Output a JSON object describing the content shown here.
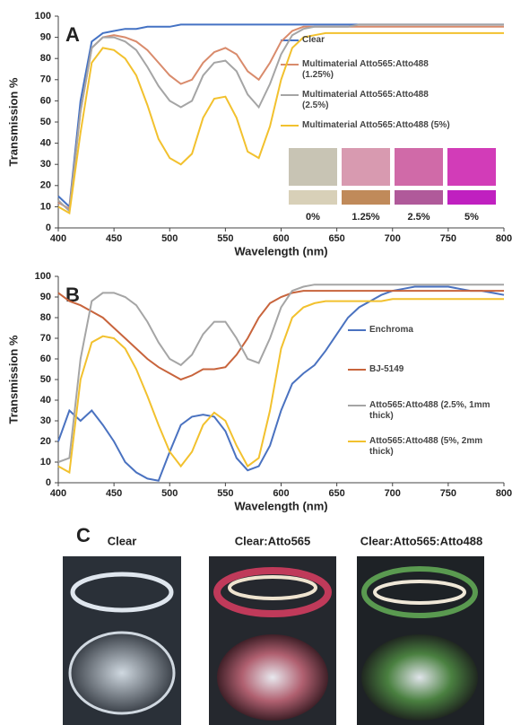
{
  "chart_data": [
    {
      "type": "line",
      "panel_label": "A",
      "x_label": "Wavelength (nm)",
      "y_label": "Transmission %",
      "xlim": [
        400,
        800
      ],
      "xticks": [
        400,
        450,
        500,
        550,
        600,
        650,
        700,
        750,
        800
      ],
      "ylim": [
        0,
        100
      ],
      "yticks": [
        0,
        10,
        20,
        30,
        40,
        50,
        60,
        70,
        80,
        90,
        100
      ],
      "x": [
        400,
        410,
        420,
        430,
        440,
        450,
        460,
        470,
        480,
        490,
        500,
        510,
        520,
        530,
        540,
        550,
        560,
        570,
        580,
        590,
        600,
        610,
        620,
        630,
        640,
        650,
        660,
        670,
        680,
        690,
        700,
        710,
        720,
        730,
        740,
        750,
        760,
        770,
        780,
        790,
        800
      ],
      "series": [
        {
          "name": "Clear",
          "color": "#4472c4",
          "values": [
            15,
            10,
            60,
            88,
            92,
            93,
            94,
            94,
            95,
            95,
            95,
            96,
            96,
            96,
            96,
            96,
            96,
            96,
            96,
            96,
            96,
            96,
            96,
            96,
            96,
            96,
            96,
            96,
            96,
            96,
            96,
            96,
            96,
            96,
            96,
            96,
            96,
            96,
            96,
            96,
            96
          ]
        },
        {
          "name": "Multimaterial Atto565:Atto488 (1.25%)",
          "color": "#d98b6c",
          "values": [
            12,
            9,
            55,
            85,
            90,
            91,
            90,
            88,
            84,
            78,
            72,
            68,
            70,
            78,
            83,
            85,
            82,
            74,
            70,
            78,
            88,
            93,
            95,
            95,
            95,
            95,
            95,
            95,
            95,
            95,
            95,
            95,
            95,
            95,
            95,
            95,
            95,
            95,
            95,
            95,
            95
          ]
        },
        {
          "name": "Multimaterial Atto565:Atto488 (2.5%)",
          "color": "#a5a5a5",
          "values": [
            13,
            8,
            55,
            85,
            90,
            90,
            88,
            84,
            76,
            67,
            60,
            57,
            60,
            72,
            78,
            79,
            74,
            63,
            57,
            68,
            82,
            91,
            94,
            95,
            95,
            95,
            95,
            96,
            96,
            96,
            96,
            96,
            96,
            96,
            96,
            96,
            96,
            96,
            96,
            96,
            96
          ]
        },
        {
          "name": "Multimaterial Atto565:Atto488 (5%)",
          "color": "#f2c12e",
          "values": [
            10,
            7,
            45,
            78,
            85,
            84,
            80,
            72,
            58,
            42,
            33,
            30,
            35,
            52,
            61,
            62,
            52,
            36,
            33,
            48,
            70,
            85,
            90,
            91,
            92,
            92,
            92,
            92,
            92,
            92,
            92,
            92,
            92,
            92,
            92,
            92,
            92,
            92,
            92,
            92,
            92
          ]
        }
      ],
      "inset_labels": [
        "0%",
        "1.25%",
        "2.5%",
        "5%"
      ]
    },
    {
      "type": "line",
      "panel_label": "B",
      "x_label": "Wavelength (nm)",
      "y_label": "Transmission %",
      "xlim": [
        400,
        800
      ],
      "xticks": [
        400,
        450,
        500,
        550,
        600,
        650,
        700,
        750,
        800
      ],
      "ylim": [
        0,
        100
      ],
      "yticks": [
        0,
        10,
        20,
        30,
        40,
        50,
        60,
        70,
        80,
        90,
        100
      ],
      "x": [
        400,
        410,
        420,
        430,
        440,
        450,
        460,
        470,
        480,
        490,
        500,
        510,
        520,
        530,
        540,
        550,
        560,
        570,
        580,
        590,
        600,
        610,
        620,
        630,
        640,
        650,
        660,
        670,
        680,
        690,
        700,
        710,
        720,
        730,
        740,
        750,
        760,
        770,
        780,
        790,
        800
      ],
      "series": [
        {
          "name": "Enchroma",
          "color": "#4a72c0",
          "values": [
            20,
            35,
            30,
            35,
            28,
            20,
            10,
            5,
            2,
            1,
            15,
            28,
            32,
            33,
            32,
            25,
            12,
            6,
            8,
            18,
            35,
            48,
            53,
            57,
            64,
            72,
            80,
            85,
            88,
            91,
            93,
            94,
            95,
            95,
            95,
            95,
            94,
            93,
            93,
            92,
            91
          ]
        },
        {
          "name": "BJ-5149",
          "color": "#c8643c",
          "values": [
            92,
            88,
            86,
            83,
            80,
            75,
            70,
            65,
            60,
            56,
            53,
            50,
            52,
            55,
            55,
            56,
            62,
            70,
            80,
            87,
            90,
            92,
            93,
            93,
            93,
            93,
            93,
            93,
            93,
            93,
            93,
            93,
            93,
            93,
            93,
            93,
            93,
            93,
            93,
            93,
            93
          ]
        },
        {
          "name": "Atto565:Atto488 (2.5%, 1mm thick)",
          "color": "#a5a5a5",
          "values": [
            10,
            12,
            60,
            88,
            92,
            92,
            90,
            86,
            78,
            68,
            60,
            57,
            62,
            72,
            78,
            78,
            70,
            60,
            58,
            70,
            85,
            93,
            95,
            96,
            96,
            96,
            96,
            96,
            96,
            96,
            96,
            96,
            96,
            96,
            96,
            96,
            96,
            96,
            96,
            96,
            96
          ]
        },
        {
          "name": "Atto565:Atto488 (5%, 2mm thick)",
          "color": "#f2c12e",
          "values": [
            8,
            5,
            50,
            68,
            71,
            70,
            65,
            55,
            42,
            28,
            15,
            8,
            15,
            28,
            34,
            30,
            18,
            8,
            12,
            35,
            65,
            80,
            85,
            87,
            88,
            88,
            88,
            88,
            88,
            88,
            89,
            89,
            89,
            89,
            89,
            89,
            89,
            89,
            89,
            89,
            89
          ]
        }
      ]
    }
  ],
  "panel_c": {
    "label": "C",
    "captions": [
      "Clear",
      "Clear:Atto565",
      "Clear:Atto565:Atto488"
    ]
  }
}
